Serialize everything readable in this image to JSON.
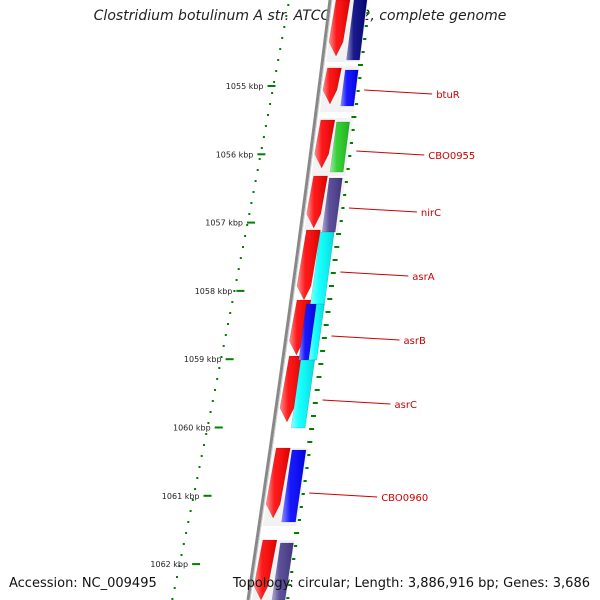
{
  "map": {
    "title": "Clostridium botulinum A str. ATCC 3502, complete genome",
    "accession": "Accession: NC_009495",
    "topology": "Topology: circular; Length: 3,886,916 bp; Genes: 3,686"
  },
  "ruler": {
    "ticks": [
      "1055 kbp",
      "1056 kbp",
      "1057 kbp",
      "1058 kbp",
      "1059 kbp",
      "1060 kbp",
      "1061 kbp",
      "1062 kbp"
    ]
  },
  "genes": [
    {
      "name": "btuR",
      "color": "#0000ff"
    },
    {
      "name": "CBO0955",
      "color": "#22cc22"
    },
    {
      "name": "nirC",
      "color": "#4a3d8f"
    },
    {
      "name": "asrA",
      "color": "#00ffff"
    },
    {
      "name": "asrB",
      "color": "#0000ff"
    },
    {
      "name": "asrC",
      "color": "#00ffff"
    },
    {
      "name": "CBO0960",
      "color": "#0000ff"
    }
  ],
  "colors": {
    "forward_cds": "#ff0000",
    "reverse_cds_default": "#0000ff",
    "gc_ticks": "#008000",
    "backbone": "#888888",
    "label": "#cc0000"
  }
}
